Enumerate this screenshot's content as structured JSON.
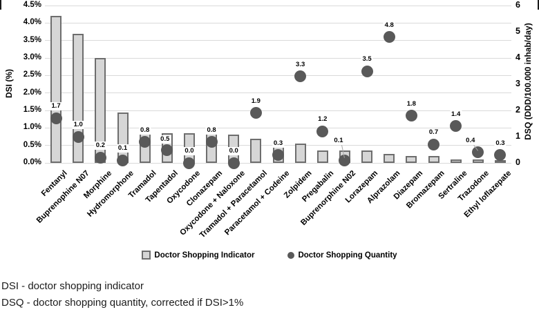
{
  "chart_data": {
    "type": "bar",
    "title": "",
    "categories": [
      "Fentanyl",
      "Buprenophine N07",
      "Morphine",
      "Hydromorphone",
      "Tramadol",
      "Tapentadol",
      "Oxycodone",
      "Clonazepam",
      "Oxycodone + Naloxone",
      "Tramadol + Paracetamol",
      "Paracetamol + Codeine",
      "Zolpidem",
      "Pregabalin",
      "Buprenorphine N02",
      "Lorazepam",
      "Alprazolam",
      "Diazepam",
      "Bromazepam",
      "Sertraline",
      "Trazodone",
      "Ethyl loflazepate"
    ],
    "series": [
      {
        "name": "Doctor Shopping Indicator",
        "type": "bar",
        "axis": "left",
        "unit": "%",
        "values": [
          4.2,
          3.7,
          3.0,
          1.45,
          0.9,
          0.85,
          0.85,
          0.85,
          0.8,
          0.7,
          0.6,
          0.55,
          0.35,
          0.35,
          0.35,
          0.25,
          0.2,
          0.2,
          0.1,
          0.1,
          0.08
        ]
      },
      {
        "name": "Doctor Shopping Quantity",
        "type": "scatter",
        "axis": "right",
        "unit": "DDD/100.000 inhab/day",
        "values": [
          1.7,
          1.0,
          0.2,
          0.1,
          0.8,
          0.5,
          0.0,
          0.8,
          0.0,
          1.9,
          0.3,
          3.3,
          1.2,
          0.1,
          3.5,
          4.8,
          1.8,
          0.7,
          1.4,
          0.4,
          0.3
        ],
        "point_labels": [
          "1.7",
          "1.0",
          "0.2",
          "0.1",
          "0.8",
          "0.5",
          "0.0",
          "0.8",
          "0.0",
          "1.9",
          "0.3",
          "3.3",
          "1.2",
          "0.1",
          "3.5",
          "4.8",
          "1.8",
          "0.7",
          "1.4",
          "0.4",
          "0.3"
        ]
      }
    ],
    "left_axis": {
      "label": "DSI (%)",
      "min": 0,
      "max": 4.5,
      "step": 0.5,
      "ticks": [
        "0.0%",
        "0.5%",
        "1.0%",
        "1.5%",
        "2.0%",
        "2.5%",
        "3.0%",
        "3.5%",
        "4.0%",
        "4.5%"
      ]
    },
    "right_axis": {
      "label": "DSQ (DDD/100.000 inhab/day)",
      "min": 0,
      "max": 6,
      "step": 1,
      "ticks": [
        "0",
        "1",
        "2",
        "3",
        "4",
        "5",
        "6"
      ]
    },
    "grid": true,
    "legend_position": "bottom"
  },
  "legend": {
    "items": [
      {
        "label": "Doctor Shopping Indicator",
        "marker": "square"
      },
      {
        "label": "Doctor Shopping Quantity",
        "marker": "circle"
      }
    ]
  },
  "footer": {
    "line1": "DSI - doctor shopping indicator",
    "line2": "DSQ - doctor shopping quantity, corrected if DSI>1%"
  },
  "colors": {
    "bar_fill": "#d6d6d6",
    "bar_border": "#6d6d6d",
    "dot": "#595959",
    "gridline": "#d9d9d9",
    "text": "#000000",
    "label_bg": "#ffffff",
    "leader": "#a6a6a6"
  }
}
